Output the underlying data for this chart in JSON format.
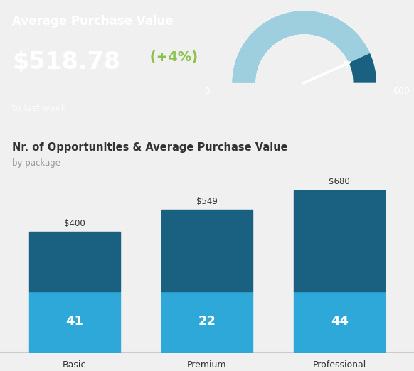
{
  "header_bg_color": "#3aaed8",
  "header_title": "Average Purchase Value",
  "header_value": "$518.78",
  "header_change": " (+4%)",
  "header_change_color": "#8BC34A",
  "header_subtitle": "to last week",
  "gauge_min": 0,
  "gauge_max": 600,
  "gauge_value": 518.78,
  "gauge_bg_color": "#7dc5e0",
  "gauge_left_color": "#9ecfdf",
  "gauge_right_color": "#1a6080",
  "gauge_needle_color": "#ffffff",
  "chart_title": "Nr. of Opportunities & Average Purchase Value",
  "chart_subtitle": "by package",
  "categories": [
    "Basic",
    "Premium",
    "Professional"
  ],
  "avg_values": [
    400,
    549,
    680
  ],
  "avg_labels": [
    "$400",
    "$549",
    "$680"
  ],
  "opp_values": [
    41,
    22,
    44
  ],
  "opp_labels": [
    "41",
    "22",
    "44"
  ],
  "bar_top_color": "#1a6080",
  "bar_bottom_color": "#2da8d8",
  "body_bg_color": "#f0f0f0",
  "chart_bg_color": "#ffffff",
  "text_color_dark": "#333333",
  "text_color_light": "#ffffff",
  "text_color_gray": "#999999",
  "bar_width": 0.45,
  "fig_width": 5.82,
  "fig_height": 5.22,
  "fig_dpi": 100
}
